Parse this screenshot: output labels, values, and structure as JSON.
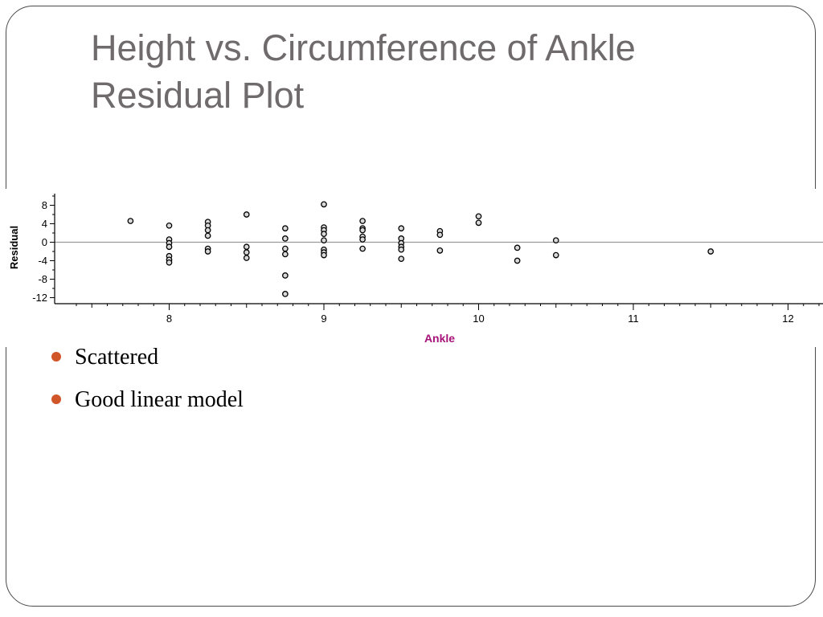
{
  "slide": {
    "title_lines": [
      "Height vs. Circumference of Ankle",
      "Residual Plot"
    ],
    "bullets": [
      "Scattered",
      "Good linear model"
    ],
    "colors": {
      "title": "#6f6a6b",
      "bullet_marker": "#d0562a",
      "frame": "#4a4a4a"
    }
  },
  "chart_data": {
    "type": "scatter",
    "title": "",
    "xlabel": "Ankle",
    "ylabel": "Residual",
    "xlim": [
      7.35,
      12.25
    ],
    "ylim": [
      -13,
      10
    ],
    "xticks": [
      8,
      9,
      10,
      11,
      12
    ],
    "yticks": [
      8,
      4,
      0,
      -4,
      -8,
      -12
    ],
    "zero_line": true,
    "grid": false,
    "colors": {
      "xlabel": "#a8137a",
      "axis": "#000000",
      "points": "#000000",
      "zero_line": "#9a9a9a"
    },
    "points": [
      {
        "x": 7.75,
        "y": 4.6
      },
      {
        "x": 8.0,
        "y": 3.6
      },
      {
        "x": 8.0,
        "y": 0.6
      },
      {
        "x": 8.0,
        "y": -0.2
      },
      {
        "x": 8.0,
        "y": -1.0
      },
      {
        "x": 8.0,
        "y": -3.0
      },
      {
        "x": 8.0,
        "y": -3.8
      },
      {
        "x": 8.0,
        "y": -4.4
      },
      {
        "x": 8.25,
        "y": 4.4
      },
      {
        "x": 8.25,
        "y": 3.6
      },
      {
        "x": 8.25,
        "y": 2.6
      },
      {
        "x": 8.25,
        "y": 1.4
      },
      {
        "x": 8.25,
        "y": -1.4
      },
      {
        "x": 8.25,
        "y": -2.0
      },
      {
        "x": 8.5,
        "y": 6.0
      },
      {
        "x": 8.5,
        "y": -1.0
      },
      {
        "x": 8.5,
        "y": -2.2
      },
      {
        "x": 8.5,
        "y": -3.4
      },
      {
        "x": 8.75,
        "y": 3.0
      },
      {
        "x": 8.75,
        "y": 0.8
      },
      {
        "x": 8.75,
        "y": -1.4
      },
      {
        "x": 8.75,
        "y": -2.6
      },
      {
        "x": 8.75,
        "y": -7.2
      },
      {
        "x": 8.75,
        "y": -11.2
      },
      {
        "x": 9.0,
        "y": 8.2
      },
      {
        "x": 9.0,
        "y": 3.2
      },
      {
        "x": 9.0,
        "y": 2.6
      },
      {
        "x": 9.0,
        "y": 1.8
      },
      {
        "x": 9.0,
        "y": 0.4
      },
      {
        "x": 9.0,
        "y": -1.6
      },
      {
        "x": 9.0,
        "y": -2.2
      },
      {
        "x": 9.0,
        "y": -2.8
      },
      {
        "x": 9.25,
        "y": 4.6
      },
      {
        "x": 9.25,
        "y": 3.0
      },
      {
        "x": 9.25,
        "y": 2.6
      },
      {
        "x": 9.25,
        "y": 1.2
      },
      {
        "x": 9.25,
        "y": 0.6
      },
      {
        "x": 9.25,
        "y": -1.4
      },
      {
        "x": 9.5,
        "y": 3.0
      },
      {
        "x": 9.5,
        "y": 0.8
      },
      {
        "x": 9.5,
        "y": -0.2
      },
      {
        "x": 9.5,
        "y": -1.0
      },
      {
        "x": 9.5,
        "y": -1.6
      },
      {
        "x": 9.5,
        "y": -3.6
      },
      {
        "x": 9.75,
        "y": 2.4
      },
      {
        "x": 9.75,
        "y": 1.6
      },
      {
        "x": 9.75,
        "y": -1.8
      },
      {
        "x": 10.0,
        "y": 5.6
      },
      {
        "x": 10.0,
        "y": 4.2
      },
      {
        "x": 10.25,
        "y": -1.2
      },
      {
        "x": 10.25,
        "y": -4.0
      },
      {
        "x": 10.5,
        "y": 0.4
      },
      {
        "x": 10.5,
        "y": -2.8
      },
      {
        "x": 11.5,
        "y": -2.0
      }
    ]
  }
}
